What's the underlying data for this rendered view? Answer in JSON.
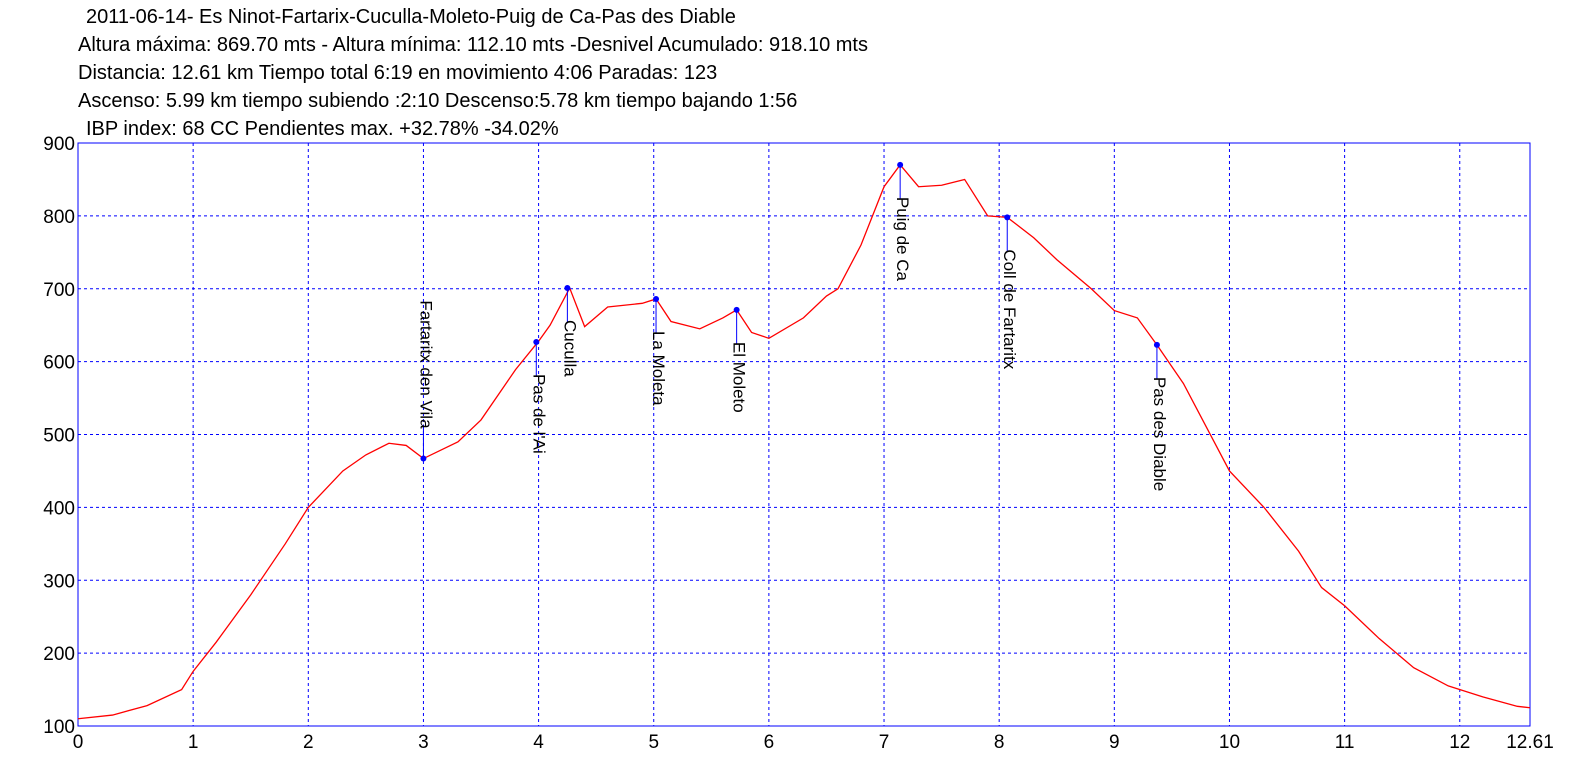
{
  "chart_data": {
    "type": "line",
    "title": "2011-06-14- Es Ninot-Fartarix-Cuculla-Moleto-Puig de Ca-Pas des Diable",
    "subtitle": [
      "Altura máxima: 869.70 mts - Altura mínima: 112.10 mts -Desnivel Acumulado: 918.10 mts",
      "Distancia: 12.61 km  Tiempo total 6:19  en movimiento 4:06 Paradas: 123",
      "Ascenso: 5.99 km  tiempo subiendo :2:10  Descenso:5.78 km tiempo bajando 1:56",
      "IBP index: 68 CC  Pendientes max. +32.78%  -34.02%"
    ],
    "xlim": [
      0,
      12.61
    ],
    "ylim": [
      100,
      900
    ],
    "xticks": [
      0,
      1,
      2,
      3,
      4,
      5,
      6,
      7,
      8,
      9,
      10,
      11,
      12,
      12.61
    ],
    "yticks": [
      100,
      200,
      300,
      400,
      500,
      600,
      700,
      800,
      900
    ],
    "grid": true,
    "series": [
      {
        "color": "#ff0000",
        "x": [
          0,
          0.3,
          0.6,
          0.9,
          1.0,
          1.2,
          1.5,
          1.8,
          2.0,
          2.3,
          2.5,
          2.7,
          2.85,
          3.0,
          3.3,
          3.5,
          3.8,
          4.0,
          4.1,
          4.27,
          4.4,
          4.6,
          4.9,
          5.02,
          5.15,
          5.4,
          5.6,
          5.72,
          5.85,
          6.0,
          6.3,
          6.5,
          6.6,
          6.8,
          7.0,
          7.14,
          7.3,
          7.5,
          7.7,
          7.9,
          8.07,
          8.3,
          8.5,
          8.8,
          9.0,
          9.2,
          9.37,
          9.6,
          9.8,
          10.0,
          10.3,
          10.6,
          10.8,
          11.0,
          11.3,
          11.6,
          11.9,
          12.2,
          12.5,
          12.61
        ],
        "values": [
          110,
          115,
          128,
          150,
          175,
          215,
          280,
          350,
          400,
          450,
          472,
          488,
          485,
          467,
          490,
          520,
          589,
          628,
          650,
          701,
          648,
          675,
          680,
          686,
          655,
          645,
          660,
          671,
          640,
          632,
          660,
          690,
          700,
          760,
          840,
          870,
          840,
          842,
          850,
          800,
          798,
          770,
          740,
          700,
          670,
          660,
          623,
          570,
          510,
          450,
          400,
          340,
          290,
          265,
          220,
          180,
          155,
          140,
          127,
          125
        ]
      }
    ],
    "waypoints": [
      {
        "name": "Fartaritx den Vila",
        "x": 3.0,
        "value": 467
      },
      {
        "name": "Pas de l'Ai",
        "x": 3.98,
        "value": 627
      },
      {
        "name": "Cuculla",
        "x": 4.25,
        "value": 701
      },
      {
        "name": "La Moleta",
        "x": 5.02,
        "value": 686
      },
      {
        "name": "El Moleto",
        "x": 5.72,
        "value": 671
      },
      {
        "name": "Puig de Ca",
        "x": 7.14,
        "value": 870
      },
      {
        "name": "Coll de Fartaritx",
        "x": 8.07,
        "value": 798
      },
      {
        "name": "Pas des Diable",
        "x": 9.37,
        "value": 623
      }
    ]
  }
}
